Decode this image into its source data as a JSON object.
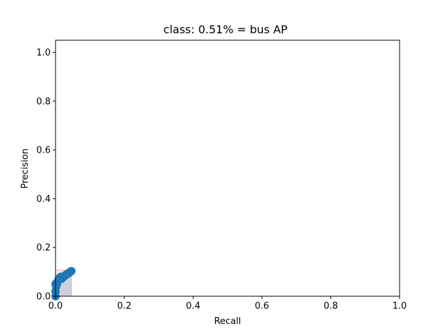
{
  "chart_data": {
    "type": "area",
    "title": "class: 0.51% = bus AP",
    "xlabel": "Recall",
    "ylabel": "Precision",
    "xlim": [
      0.0,
      1.0
    ],
    "ylim": [
      0.0,
      1.05
    ],
    "xticks": [
      "0.0",
      "0.2",
      "0.4",
      "0.6",
      "0.8",
      "1.0"
    ],
    "yticks": [
      "0.0",
      "0.2",
      "0.4",
      "0.6",
      "0.8",
      "1.0"
    ],
    "grid": false,
    "colors": {
      "line": "#1f77b4",
      "fill": "#1f77b4",
      "envelope_edge": "#d62728"
    },
    "series": [
      {
        "x": [
          0.0,
          0.0,
          0.0,
          0.002,
          0.004,
          0.006,
          0.008,
          0.01,
          0.012,
          0.014,
          0.016,
          0.018,
          0.02,
          0.022,
          0.025,
          0.028,
          0.03,
          0.032,
          0.035,
          0.038,
          0.04,
          0.042,
          0.044,
          0.046
        ],
        "y": [
          0.0,
          0.02,
          0.05,
          0.04,
          0.05,
          0.06,
          0.065,
          0.07,
          0.075,
          0.078,
          0.08,
          0.072,
          0.075,
          0.078,
          0.082,
          0.085,
          0.088,
          0.09,
          0.092,
          0.095,
          0.097,
          0.099,
          0.101,
          0.103
        ]
      }
    ],
    "envelope": {
      "x": [
        0.0,
        0.046
      ],
      "y_max": 0.107
    }
  }
}
